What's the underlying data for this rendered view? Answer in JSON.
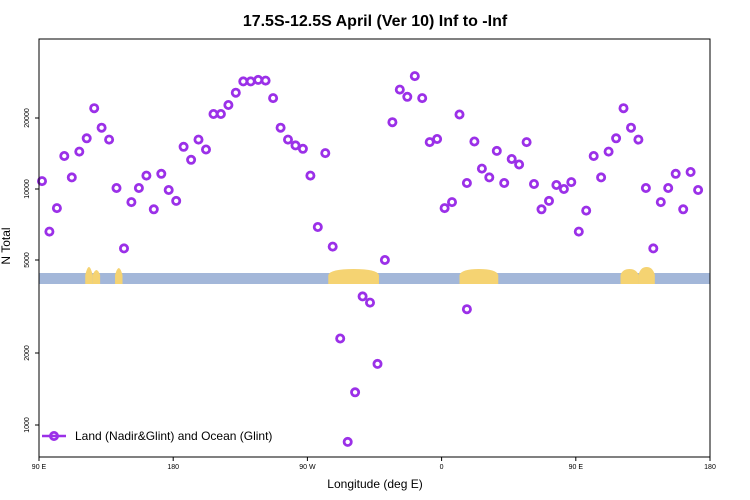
{
  "chart_data": {
    "type": "scatter",
    "title": "17.5S-12.5S April (Ver 10)   Inf to -Inf",
    "xlabel": "Longitude (deg E)",
    "ylabel": "N Total",
    "x_ticks": [
      {
        "value": 90,
        "label": "90 E"
      },
      {
        "value": 180,
        "label": "180"
      },
      {
        "value": 270,
        "label": "90 W"
      },
      {
        "value": 360,
        "label": "0"
      },
      {
        "value": 450,
        "label": "90 E"
      },
      {
        "value": 540,
        "label": "180"
      }
    ],
    "y_ticks_upper": [
      5000,
      10000,
      20000
    ],
    "y_ticks_lower": [
      1000,
      2000
    ],
    "xlim": [
      90,
      540
    ],
    "legend": {
      "position": "bottom-left",
      "label": "Land (Nadir&Glint) and Ocean (Glint)"
    },
    "colors": {
      "marker": "#9b30e8",
      "ocean_band": "#a3b7d9",
      "land_band": "#f5d372"
    },
    "series": [
      {
        "name": "Land (Nadir&Glint) and Ocean (Glint)",
        "points": [
          [
            92,
            10800
          ],
          [
            97,
            6600
          ],
          [
            102,
            8300
          ],
          [
            107,
            13800
          ],
          [
            112,
            11200
          ],
          [
            117,
            14400
          ],
          [
            122,
            16400
          ],
          [
            127,
            22000
          ],
          [
            132,
            18200
          ],
          [
            137,
            16200
          ],
          [
            142,
            10100
          ],
          [
            147,
            5600
          ],
          [
            152,
            8800
          ],
          [
            157,
            10100
          ],
          [
            162,
            11400
          ],
          [
            167,
            8200
          ],
          [
            172,
            11600
          ],
          [
            177,
            9900
          ],
          [
            182,
            8900
          ],
          [
            187,
            15100
          ],
          [
            192,
            13300
          ],
          [
            197,
            16200
          ],
          [
            202,
            14700
          ],
          [
            207,
            20800
          ],
          [
            212,
            20800
          ],
          [
            217,
            22700
          ],
          [
            222,
            25600
          ],
          [
            227,
            28600
          ],
          [
            232,
            28600
          ],
          [
            237,
            29000
          ],
          [
            242,
            28800
          ],
          [
            247,
            24300
          ],
          [
            252,
            18200
          ],
          [
            257,
            16200
          ],
          [
            262,
            15300
          ],
          [
            267,
            14800
          ],
          [
            272,
            11400
          ],
          [
            277,
            6900
          ],
          [
            282,
            14200
          ],
          [
            287,
            5700
          ],
          [
            292,
            2300
          ],
          [
            297,
            850
          ],
          [
            302,
            1370
          ],
          [
            307,
            3450
          ],
          [
            312,
            3250
          ],
          [
            317,
            1800
          ],
          [
            322,
            5000
          ],
          [
            327,
            19200
          ],
          [
            332,
            26400
          ],
          [
            337,
            24600
          ],
          [
            342,
            30100
          ],
          [
            347,
            24300
          ],
          [
            352,
            15800
          ],
          [
            357,
            16300
          ],
          [
            362,
            8300
          ],
          [
            367,
            8800
          ],
          [
            372,
            20700
          ],
          [
            377,
            10600
          ],
          [
            382,
            15900
          ],
          [
            387,
            12200
          ],
          [
            392,
            11200
          ],
          [
            397,
            14500
          ],
          [
            402,
            10600
          ],
          [
            407,
            13400
          ],
          [
            412,
            12700
          ],
          [
            417,
            15800
          ],
          [
            422,
            10500
          ],
          [
            427,
            8200
          ],
          [
            432,
            8900
          ],
          [
            437,
            10400
          ],
          [
            442,
            10000
          ],
          [
            447,
            10700
          ],
          [
            452,
            6600
          ],
          [
            457,
            8100
          ],
          [
            462,
            13800
          ],
          [
            467,
            11200
          ],
          [
            472,
            14400
          ],
          [
            477,
            16400
          ],
          [
            482,
            22000
          ],
          [
            487,
            18200
          ],
          [
            492,
            16200
          ],
          [
            497,
            10100
          ],
          [
            502,
            5600
          ],
          [
            507,
            8800
          ],
          [
            512,
            10100
          ],
          [
            517,
            11600
          ],
          [
            522,
            8200
          ],
          [
            527,
            11800
          ],
          [
            532,
            9900
          ]
        ]
      },
      {
        "name": "",
        "points": [
          [
            377,
            3050
          ]
        ]
      }
    ]
  }
}
